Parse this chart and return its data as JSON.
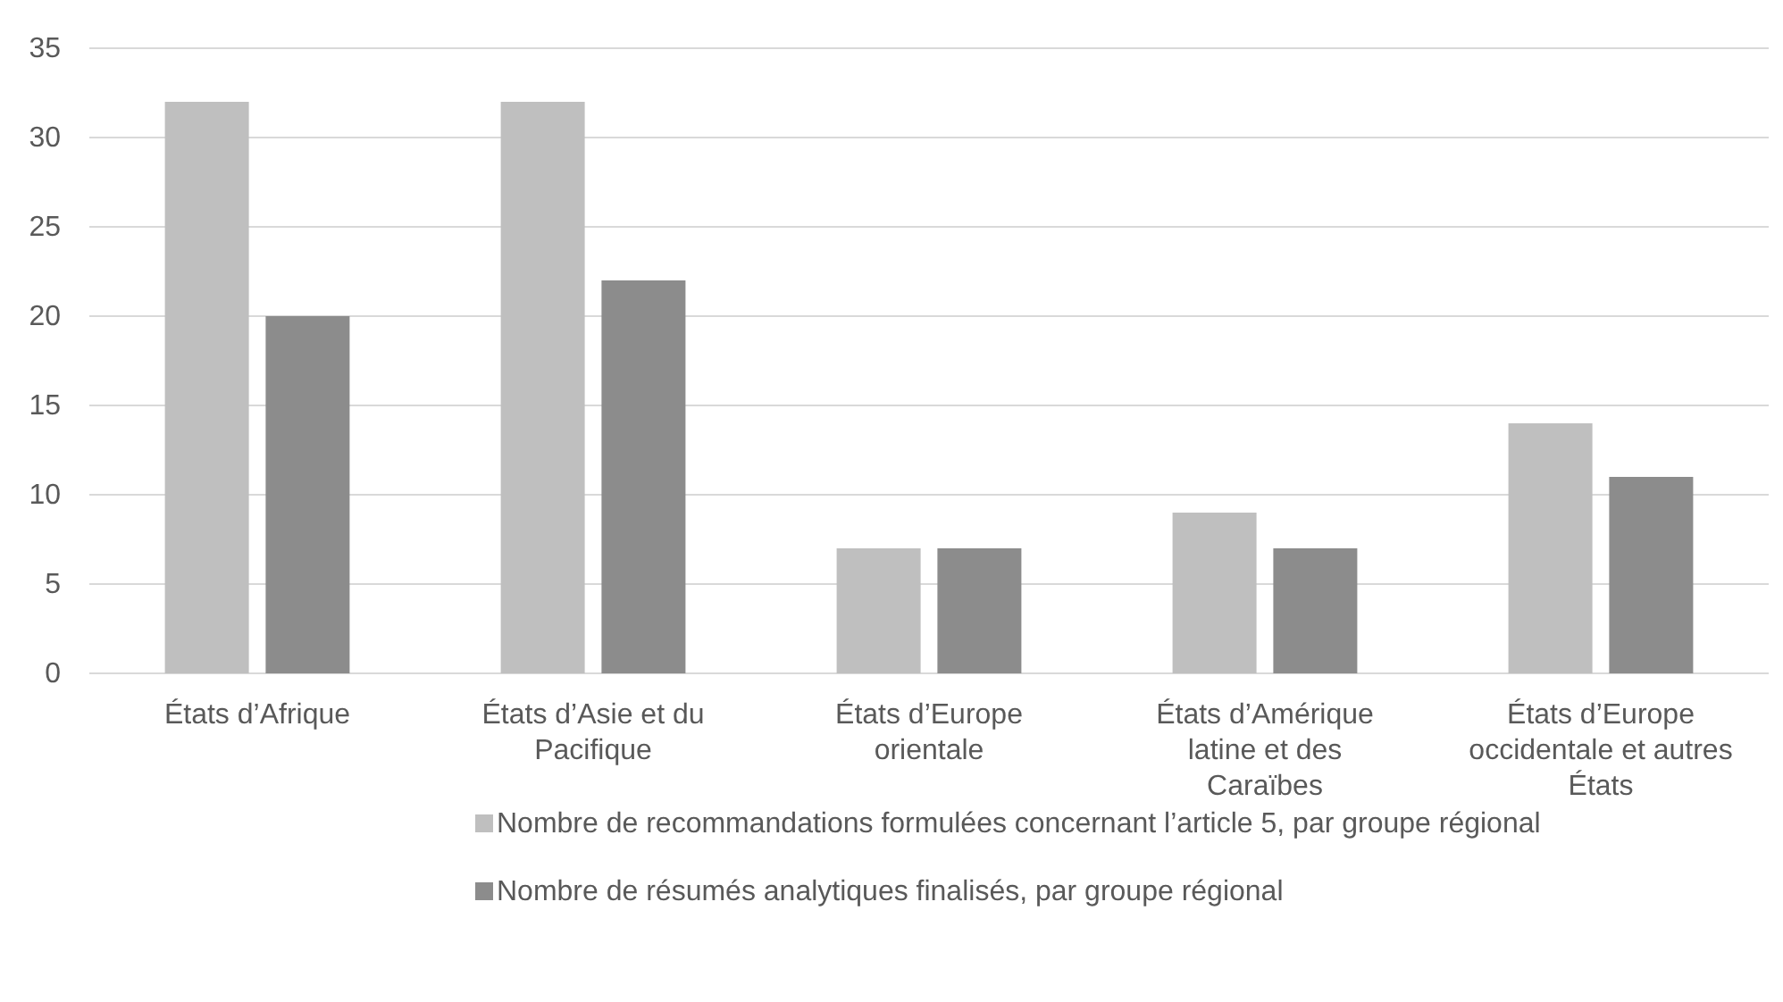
{
  "chart_data": {
    "type": "bar",
    "categories": [
      "États d’Afrique",
      "États d’Asie et du Pacifique",
      "États d’Europe orientale",
      "États d’Amérique latine et des Caraïbes",
      "États d’Europe occidentale et autres États"
    ],
    "series": [
      {
        "name": "Nombre de recommandations formulées concernant l’article 5, par groupe régional",
        "color": "#bfbfbf",
        "values": [
          32,
          32,
          7,
          9,
          14
        ]
      },
      {
        "name": "Nombre de résumés analytiques finalisés, par groupe régional",
        "color": "#8c8c8c",
        "values": [
          20,
          22,
          7,
          7,
          11
        ]
      }
    ],
    "ylim": [
      0,
      35
    ],
    "yticks": [
      0,
      5,
      10,
      15,
      20,
      25,
      30,
      35
    ],
    "grid": "y",
    "legend": "bottom"
  }
}
